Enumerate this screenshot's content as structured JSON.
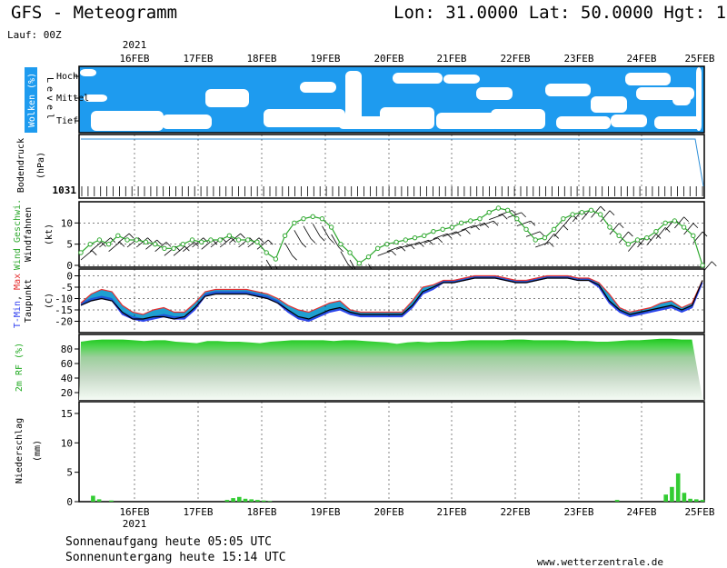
{
  "header": {
    "title": "GFS - Meteogramm",
    "location": "Lon: 31.0000 Lat: 50.0000 Hgt: 1",
    "run": "Lauf: 00Z"
  },
  "axis": {
    "year": "2021",
    "dates": [
      "16FEB",
      "17FEB",
      "18FEB",
      "19FEB",
      "20FEB",
      "21FEB",
      "22FEB",
      "23FEB",
      "24FEB",
      "25FEB"
    ]
  },
  "footer": {
    "sunrise": "Sonnenaufgang heute 05:05 UTC",
    "sunset": "Sonnenuntergang heute 15:14 UTC",
    "website": "www.wetterzentrale.de"
  },
  "colors": {
    "cloud_sky": "#1E9BEF",
    "cloud": "#FFFFFF",
    "pressure": "#2E8FD8",
    "wind": "#2EA82E",
    "tmax": "#E53030",
    "tmin": "#3040F0",
    "dew": "#000000",
    "rh": "#22CC22",
    "precip": "#33CC33"
  },
  "chart_data": [
    {
      "type": "heatmap",
      "name": "clouds",
      "ylabel": "Wolken (%)",
      "side_label": "Level",
      "levels": [
        "Hoch",
        "Mittel",
        "Tief"
      ]
    },
    {
      "type": "line",
      "name": "pressure",
      "ylabel": "Bodendruck",
      "unit": "(hPa)",
      "tick_label": "1031"
    },
    {
      "type": "line",
      "name": "wind",
      "ylabel": "Wind Geschwi.",
      "ylabel2": "Windfahnen",
      "unit": "(kt)",
      "ylim": [
        0,
        15
      ],
      "yticks": [
        0,
        5,
        10
      ],
      "values": [
        3,
        5,
        6,
        5,
        7,
        6,
        6,
        5.5,
        5,
        4,
        4,
        5,
        6,
        5.5,
        6,
        6,
        7,
        6,
        6,
        5.5,
        3,
        1.5,
        7,
        10,
        11,
        11.5,
        11,
        9,
        5,
        3,
        0.5,
        2,
        4,
        5,
        5.5,
        6,
        6.5,
        7,
        8,
        8.5,
        9,
        10,
        10.5,
        11,
        12.5,
        13.5,
        13,
        11,
        8.5,
        6,
        6.5,
        8.5,
        11,
        12,
        12.5,
        13,
        12,
        9,
        7,
        5,
        6,
        6.5,
        8,
        10,
        10.5,
        9,
        7,
        0
      ]
    },
    {
      "type": "area",
      "name": "temperature",
      "ylabel_min": "T-Min",
      "ylabel_max": "Max",
      "ylabel_dew": "Taupunkt",
      "unit": "(C)",
      "ylim": [
        -25,
        3
      ],
      "yticks": [
        0,
        -5,
        -10,
        -15,
        -20
      ],
      "tmax": [
        -12,
        -8,
        -6,
        -7,
        -13,
        -16,
        -17,
        -15,
        -14,
        -16,
        -16,
        -12,
        -7,
        -6,
        -6,
        -6,
        -6,
        -7,
        -8,
        -10,
        -13,
        -15,
        -16,
        -14,
        -12,
        -11,
        -15,
        -16,
        -16,
        -16,
        -16,
        -16,
        -11,
        -5,
        -4,
        -2,
        -2,
        -1,
        0,
        0,
        0,
        -1,
        -2,
        -2,
        -1,
        0,
        0,
        0,
        -1,
        -1,
        -3,
        -8,
        -14,
        -16,
        -15,
        -14,
        -12,
        -11,
        -14,
        -12,
        -2
      ],
      "tmin": [
        -13,
        -11,
        -10,
        -11,
        -17,
        -19,
        -20,
        -19,
        -18,
        -19,
        -19,
        -15,
        -9,
        -8,
        -8,
        -8,
        -8,
        -9,
        -10,
        -12,
        -16,
        -19,
        -20,
        -18,
        -16,
        -15,
        -17,
        -18,
        -18,
        -18,
        -18,
        -18,
        -14,
        -8,
        -6,
        -3,
        -3,
        -2,
        -1,
        -1,
        -1,
        -2,
        -3,
        -3,
        -2,
        -1,
        -1,
        -1,
        -2,
        -2,
        -5,
        -12,
        -16,
        -18,
        -17,
        -16,
        -15,
        -14,
        -16,
        -14,
        -3
      ],
      "dewpoint": [
        -13,
        -11,
        -10,
        -11,
        -16,
        -19,
        -19,
        -18,
        -18,
        -19,
        -18,
        -14,
        -9,
        -8,
        -8,
        -8,
        -8,
        -9,
        -10,
        -12,
        -15,
        -18,
        -19,
        -17,
        -15,
        -14,
        -16,
        -17,
        -17,
        -17,
        -17,
        -17,
        -13,
        -7,
        -5,
        -3,
        -3,
        -2,
        -1,
        -1,
        -1,
        -2,
        -3,
        -3,
        -2,
        -1,
        -1,
        -1,
        -2,
        -2,
        -4,
        -11,
        -15,
        -17,
        -16,
        -15,
        -14,
        -13,
        -15,
        -13,
        -2
      ]
    },
    {
      "type": "area",
      "name": "humidity",
      "ylabel": "2m RF (%)",
      "ylim": [
        10,
        100
      ],
      "yticks": [
        20,
        40,
        60,
        80
      ],
      "values": [
        90,
        92,
        93,
        93,
        93,
        92,
        91,
        92,
        92,
        90,
        89,
        88,
        91,
        91,
        90,
        90,
        89,
        88,
        90,
        91,
        92,
        92,
        92,
        92,
        91,
        92,
        92,
        91,
        90,
        89,
        87,
        89,
        90,
        89,
        90,
        90,
        91,
        92,
        92,
        92,
        92,
        93,
        93,
        92,
        92,
        92,
        92,
        91,
        91,
        90,
        90,
        91,
        92,
        92,
        93,
        94,
        94,
        93,
        93,
        12
      ]
    },
    {
      "type": "bar",
      "name": "precipitation",
      "ylabel": "Niederschlag",
      "unit": "(mm)",
      "ylim": [
        0,
        17
      ],
      "yticks": [
        0,
        5,
        10,
        15
      ],
      "values": [
        0,
        0,
        1,
        0.4,
        0,
        0.2,
        0,
        0,
        0,
        0,
        0,
        0,
        0,
        0,
        0,
        0,
        0,
        0,
        0,
        0,
        0,
        0,
        0,
        0,
        0.3,
        0.6,
        0.8,
        0.5,
        0.4,
        0.3,
        0.2,
        0.1,
        0,
        0,
        0,
        0,
        0,
        0,
        0,
        0,
        0,
        0,
        0,
        0,
        0,
        0,
        0,
        0,
        0,
        0,
        0,
        0,
        0,
        0,
        0,
        0,
        0,
        0,
        0,
        0,
        0,
        0,
        0,
        0,
        0,
        0,
        0,
        0,
        0,
        0,
        0,
        0,
        0,
        0,
        0,
        0,
        0,
        0,
        0,
        0,
        0,
        0,
        0,
        0,
        0,
        0,
        0,
        0,
        0.3,
        0,
        0,
        0,
        0,
        0,
        0,
        0,
        1.2,
        2.5,
        4.8,
        1.5,
        0.5,
        0.4,
        0.3
      ]
    }
  ]
}
